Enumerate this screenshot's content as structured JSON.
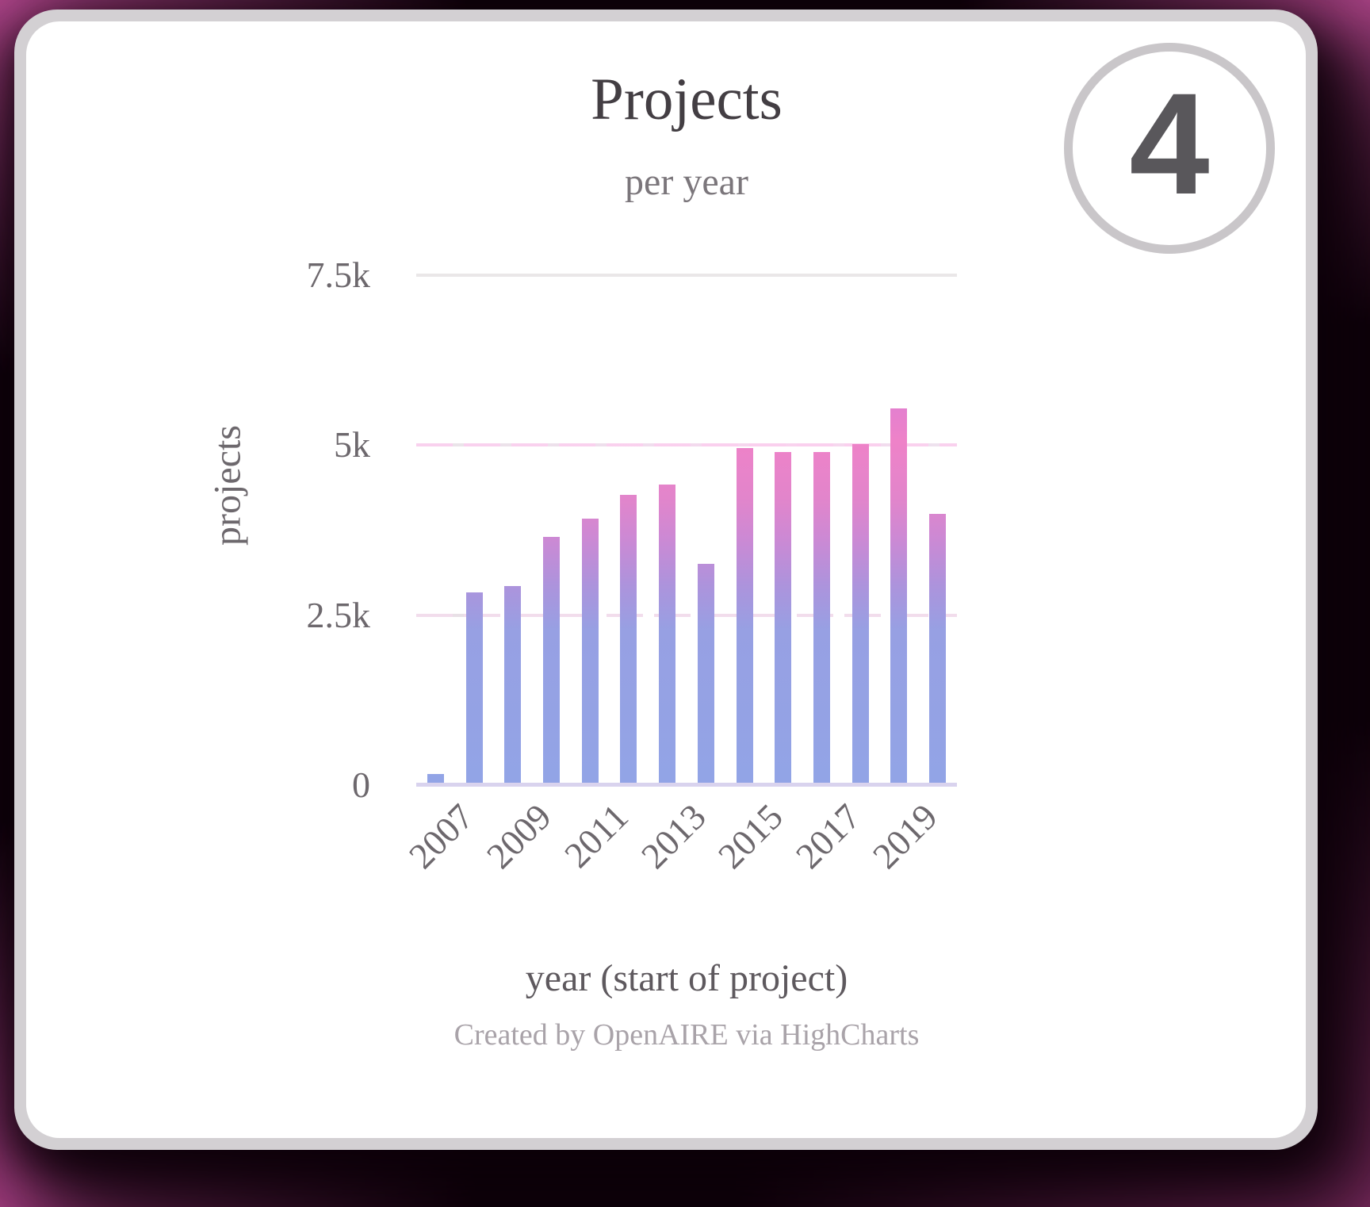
{
  "badge": {
    "number": "4"
  },
  "chart_data": {
    "type": "bar",
    "title": "Projects",
    "subtitle": "per year",
    "xlabel": "year (start of project)",
    "ylabel": "projects",
    "credits": "Created by OpenAIRE via HighCharts",
    "categories": [
      2007,
      2008,
      2009,
      2010,
      2011,
      2012,
      2013,
      2014,
      2015,
      2016,
      2017,
      2018,
      2019,
      2020
    ],
    "values": [
      140,
      2810,
      2900,
      3630,
      3900,
      4250,
      4400,
      3230,
      4930,
      4870,
      4870,
      4990,
      5520,
      3970
    ],
    "ylim": [
      0,
      7500
    ],
    "ytick_values": [
      0,
      2500,
      5000,
      7500
    ],
    "ytick_labels": [
      "0",
      "2.5k",
      "5k",
      "7.5k"
    ],
    "xtick_labels": [
      "2007",
      "2009",
      "2011",
      "2013",
      "2015",
      "2017",
      "2019"
    ],
    "grid": "horizontal gridlines at 2.5k, 5k, 7.5k",
    "legend": "none",
    "colors": {
      "bar_gradient": [
        "#cf7bdb 0%",
        "#e07fd1 24%",
        "#ee82c8 33%",
        "#e285cb 44%",
        "#cc89d4 52%",
        "#ad93dc 61%",
        "#97a0e3 70%",
        "#92a4e6 100%"
      ],
      "grid_solid": "#eae7e8",
      "grid_dash_pink": "#f9d3ee",
      "axis_line": "#d9d3ee",
      "background_magenta": "#a84285",
      "card_ring": "#d3d0d3",
      "badge_border": "#c9c6c9",
      "badge_text": "#59575b",
      "title_text": "#433e43"
    }
  }
}
